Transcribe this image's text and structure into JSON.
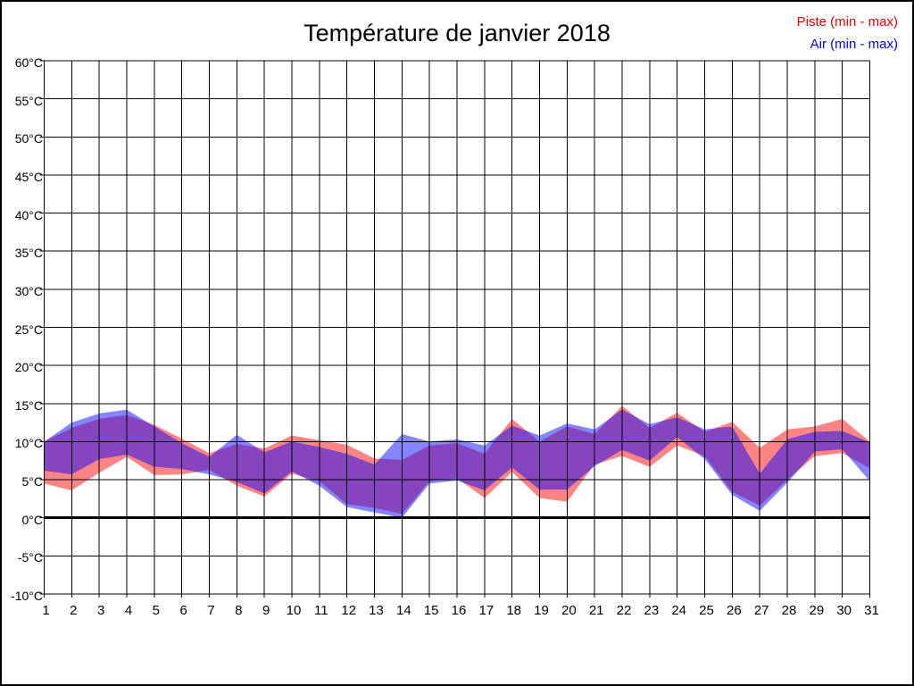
{
  "title": "Température de janvier 2018",
  "legend": [
    {
      "label": "Piste (min - max)",
      "color": "#e00000",
      "series_id": "piste"
    },
    {
      "label": "Air (min - max)",
      "color": "#0000e0",
      "series_id": "air"
    }
  ],
  "chart_data": {
    "type": "area",
    "subtype": "min-max-bands",
    "title": "Température de janvier 2018",
    "xlabel": "",
    "ylabel": "",
    "x": [
      1,
      2,
      3,
      4,
      5,
      6,
      7,
      8,
      9,
      10,
      11,
      12,
      13,
      14,
      15,
      16,
      17,
      18,
      19,
      20,
      21,
      22,
      23,
      24,
      25,
      26,
      27,
      28,
      29,
      30,
      31
    ],
    "xtick_labels": [
      "1",
      "2",
      "3",
      "4",
      "5",
      "6",
      "7",
      "8",
      "9",
      "10",
      "11",
      "12",
      "13",
      "14",
      "15",
      "16",
      "17",
      "18",
      "19",
      "20",
      "21",
      "22",
      "23",
      "24",
      "25",
      "26",
      "27",
      "28",
      "29",
      "30",
      "31"
    ],
    "ylim": [
      -10,
      60
    ],
    "ytick_values": [
      60,
      55,
      50,
      45,
      40,
      35,
      30,
      25,
      20,
      15,
      10,
      5,
      0,
      -5,
      -10
    ],
    "ytick_labels": [
      "60°C",
      "55°C",
      "50°C",
      "45°C",
      "40°C",
      "35°C",
      "30°C",
      "25°C",
      "20°C",
      "15°C",
      "10°C",
      "5°C",
      "0°C",
      "-5°C",
      "-10°C"
    ],
    "grid": true,
    "zero_line": true,
    "legend_position": "top-right",
    "series": [
      {
        "id": "piste",
        "name": "Piste (min - max)",
        "role": "band",
        "fill": "rgba(255,0,0,0.48)",
        "min": [
          4.5,
          3.6,
          5.9,
          8.0,
          5.6,
          5.7,
          6.3,
          4.2,
          2.8,
          5.8,
          4.8,
          1.8,
          1.3,
          0.5,
          4.8,
          5.2,
          2.6,
          6.0,
          2.6,
          2.1,
          7.0,
          8.1,
          6.7,
          9.5,
          8.1,
          3.4,
          1.6,
          5.0,
          8.1,
          8.5,
          6.5
        ],
        "max": [
          10.0,
          11.8,
          13.0,
          13.5,
          12.2,
          10.4,
          8.5,
          9.7,
          9.1,
          10.8,
          10.2,
          9.6,
          7.8,
          7.6,
          9.5,
          9.8,
          8.4,
          13.0,
          10.0,
          12.0,
          11.0,
          14.7,
          11.8,
          13.8,
          11.3,
          12.6,
          9.2,
          11.6,
          12.0,
          13.0,
          10.0
        ]
      },
      {
        "id": "air",
        "name": "Air (min - max)",
        "role": "band",
        "fill": "rgba(0,0,255,0.48)",
        "min": [
          6.2,
          5.7,
          7.7,
          8.3,
          6.7,
          6.4,
          5.7,
          4.7,
          3.2,
          6.1,
          4.2,
          1.4,
          0.7,
          0.0,
          4.5,
          4.9,
          3.6,
          6.6,
          3.7,
          3.7,
          6.8,
          8.9,
          7.5,
          10.6,
          7.7,
          3.0,
          0.9,
          4.6,
          8.7,
          9.0,
          4.8
        ],
        "max": [
          10.0,
          12.5,
          13.7,
          14.2,
          12.0,
          9.8,
          8.0,
          10.9,
          8.6,
          10.0,
          9.3,
          8.4,
          7.0,
          11.0,
          10.0,
          10.3,
          9.5,
          12.1,
          10.8,
          12.4,
          11.6,
          14.2,
          12.3,
          13.2,
          11.6,
          12.0,
          5.8,
          10.3,
          11.3,
          11.4,
          9.9
        ]
      }
    ]
  }
}
